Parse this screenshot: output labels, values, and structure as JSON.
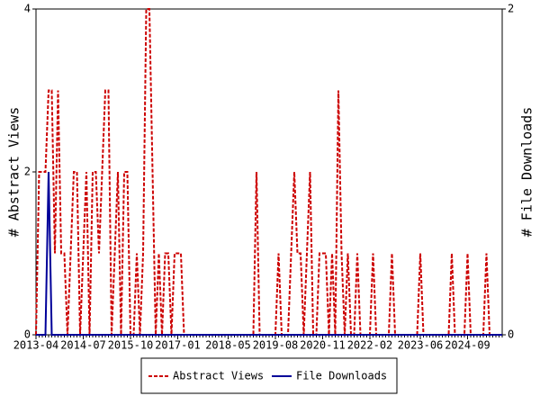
{
  "chart_data": {
    "type": "line",
    "ylabel": "# Abstract Views",
    "y2label": "# File Downloads",
    "categories": [
      "2013-04",
      null,
      null,
      null,
      null,
      null,
      null,
      null,
      null,
      null,
      null,
      null,
      null,
      null,
      null,
      "2014-07",
      null,
      null,
      null,
      null,
      null,
      null,
      null,
      null,
      null,
      null,
      null,
      null,
      null,
      null,
      "2015-10",
      null,
      null,
      null,
      null,
      null,
      null,
      null,
      null,
      null,
      null,
      null,
      null,
      null,
      null,
      "2017-01",
      null,
      null,
      null,
      null,
      null,
      null,
      null,
      null,
      null,
      null,
      null,
      null,
      null,
      null,
      null,
      "2018-05",
      null,
      null,
      null,
      null,
      null,
      null,
      null,
      null,
      null,
      null,
      null,
      null,
      null,
      null,
      "2019-08",
      null,
      null,
      null,
      null,
      null,
      null,
      null,
      null,
      null,
      null,
      null,
      null,
      null,
      null,
      "2020-11",
      null,
      null,
      null,
      null,
      null,
      null,
      null,
      null,
      null,
      null,
      null,
      null,
      null,
      null,
      "2022-02",
      null,
      null,
      null,
      null,
      null,
      null,
      null,
      null,
      null,
      null,
      null,
      null,
      null,
      null,
      null,
      "2023-06",
      null,
      null,
      null,
      null,
      null,
      null,
      null,
      null,
      null,
      null,
      null,
      null,
      null,
      null,
      "2024-09",
      null,
      null,
      null,
      null,
      null,
      null,
      null,
      null,
      null,
      null,
      null
    ],
    "series": [
      {
        "name": "Abstract Views",
        "color": "#cc0000",
        "dashed": true,
        "axis": "y",
        "values": [
          0,
          2,
          2,
          2,
          3,
          3,
          1,
          3,
          1,
          1,
          0,
          1,
          2,
          2,
          0,
          1,
          2,
          0,
          2,
          2,
          1,
          2,
          3,
          3,
          0,
          1,
          2,
          0,
          2,
          2,
          0,
          0,
          1,
          0,
          1,
          4,
          4,
          2,
          0,
          1,
          0,
          1,
          1,
          0,
          1,
          1,
          1,
          0,
          0,
          0,
          0,
          0,
          0,
          0,
          0,
          0,
          0,
          0,
          0,
          0,
          0,
          0,
          0,
          0,
          0,
          0,
          0,
          0,
          0,
          0,
          2,
          0,
          0,
          0,
          0,
          0,
          0,
          1,
          0,
          0,
          0,
          1,
          2,
          1,
          1,
          0,
          1,
          2,
          0,
          0,
          1,
          1,
          1,
          0,
          1,
          0,
          3,
          1,
          0,
          1,
          0,
          0,
          1,
          0,
          0,
          0,
          0,
          1,
          0,
          0,
          0,
          0,
          0,
          1,
          0,
          0,
          0,
          0,
          0,
          0,
          0,
          0,
          1,
          0,
          0,
          0,
          0,
          0,
          0,
          0,
          0,
          0,
          1,
          0,
          0,
          0,
          0,
          1,
          0,
          0,
          0,
          0,
          0,
          1,
          0,
          0,
          0,
          0,
          0
        ]
      },
      {
        "name": "File Downloads",
        "color": "#000099",
        "dashed": false,
        "axis": "y2",
        "values": [
          0,
          0,
          0,
          0,
          1,
          0,
          0,
          0,
          0,
          0,
          0,
          0,
          0,
          0,
          0,
          0,
          0,
          0,
          0,
          0,
          0,
          0,
          0,
          0,
          0,
          0,
          0,
          0,
          0,
          0,
          0,
          0,
          0,
          0,
          0,
          0,
          0,
          0,
          0,
          0,
          0,
          0,
          0,
          0,
          0,
          0,
          0,
          0,
          0,
          0,
          0,
          0,
          0,
          0,
          0,
          0,
          0,
          0,
          0,
          0,
          0,
          0,
          0,
          0,
          0,
          0,
          0,
          0,
          0,
          0,
          0,
          0,
          0,
          0,
          0,
          0,
          0,
          0,
          0,
          0,
          0,
          0,
          0,
          0,
          0,
          0,
          0,
          0,
          0,
          0,
          0,
          0,
          0,
          0,
          0,
          0,
          0,
          0,
          0,
          0,
          0,
          0,
          0,
          0,
          0,
          0,
          0,
          0,
          0,
          0,
          0,
          0,
          0,
          0,
          0,
          0,
          0,
          0,
          0,
          0,
          0,
          0,
          0,
          0,
          0,
          0,
          0,
          0,
          0,
          0,
          0,
          0,
          0,
          0,
          0,
          0,
          0,
          0,
          0,
          0,
          0,
          0,
          0,
          0,
          0,
          0,
          0,
          0,
          0
        ]
      }
    ],
    "ylim": [
      0,
      4
    ],
    "yticks": [
      0,
      2,
      4
    ],
    "y2lim": [
      0,
      2
    ],
    "y2ticks": [
      0,
      2
    ],
    "legend": "bottom"
  }
}
